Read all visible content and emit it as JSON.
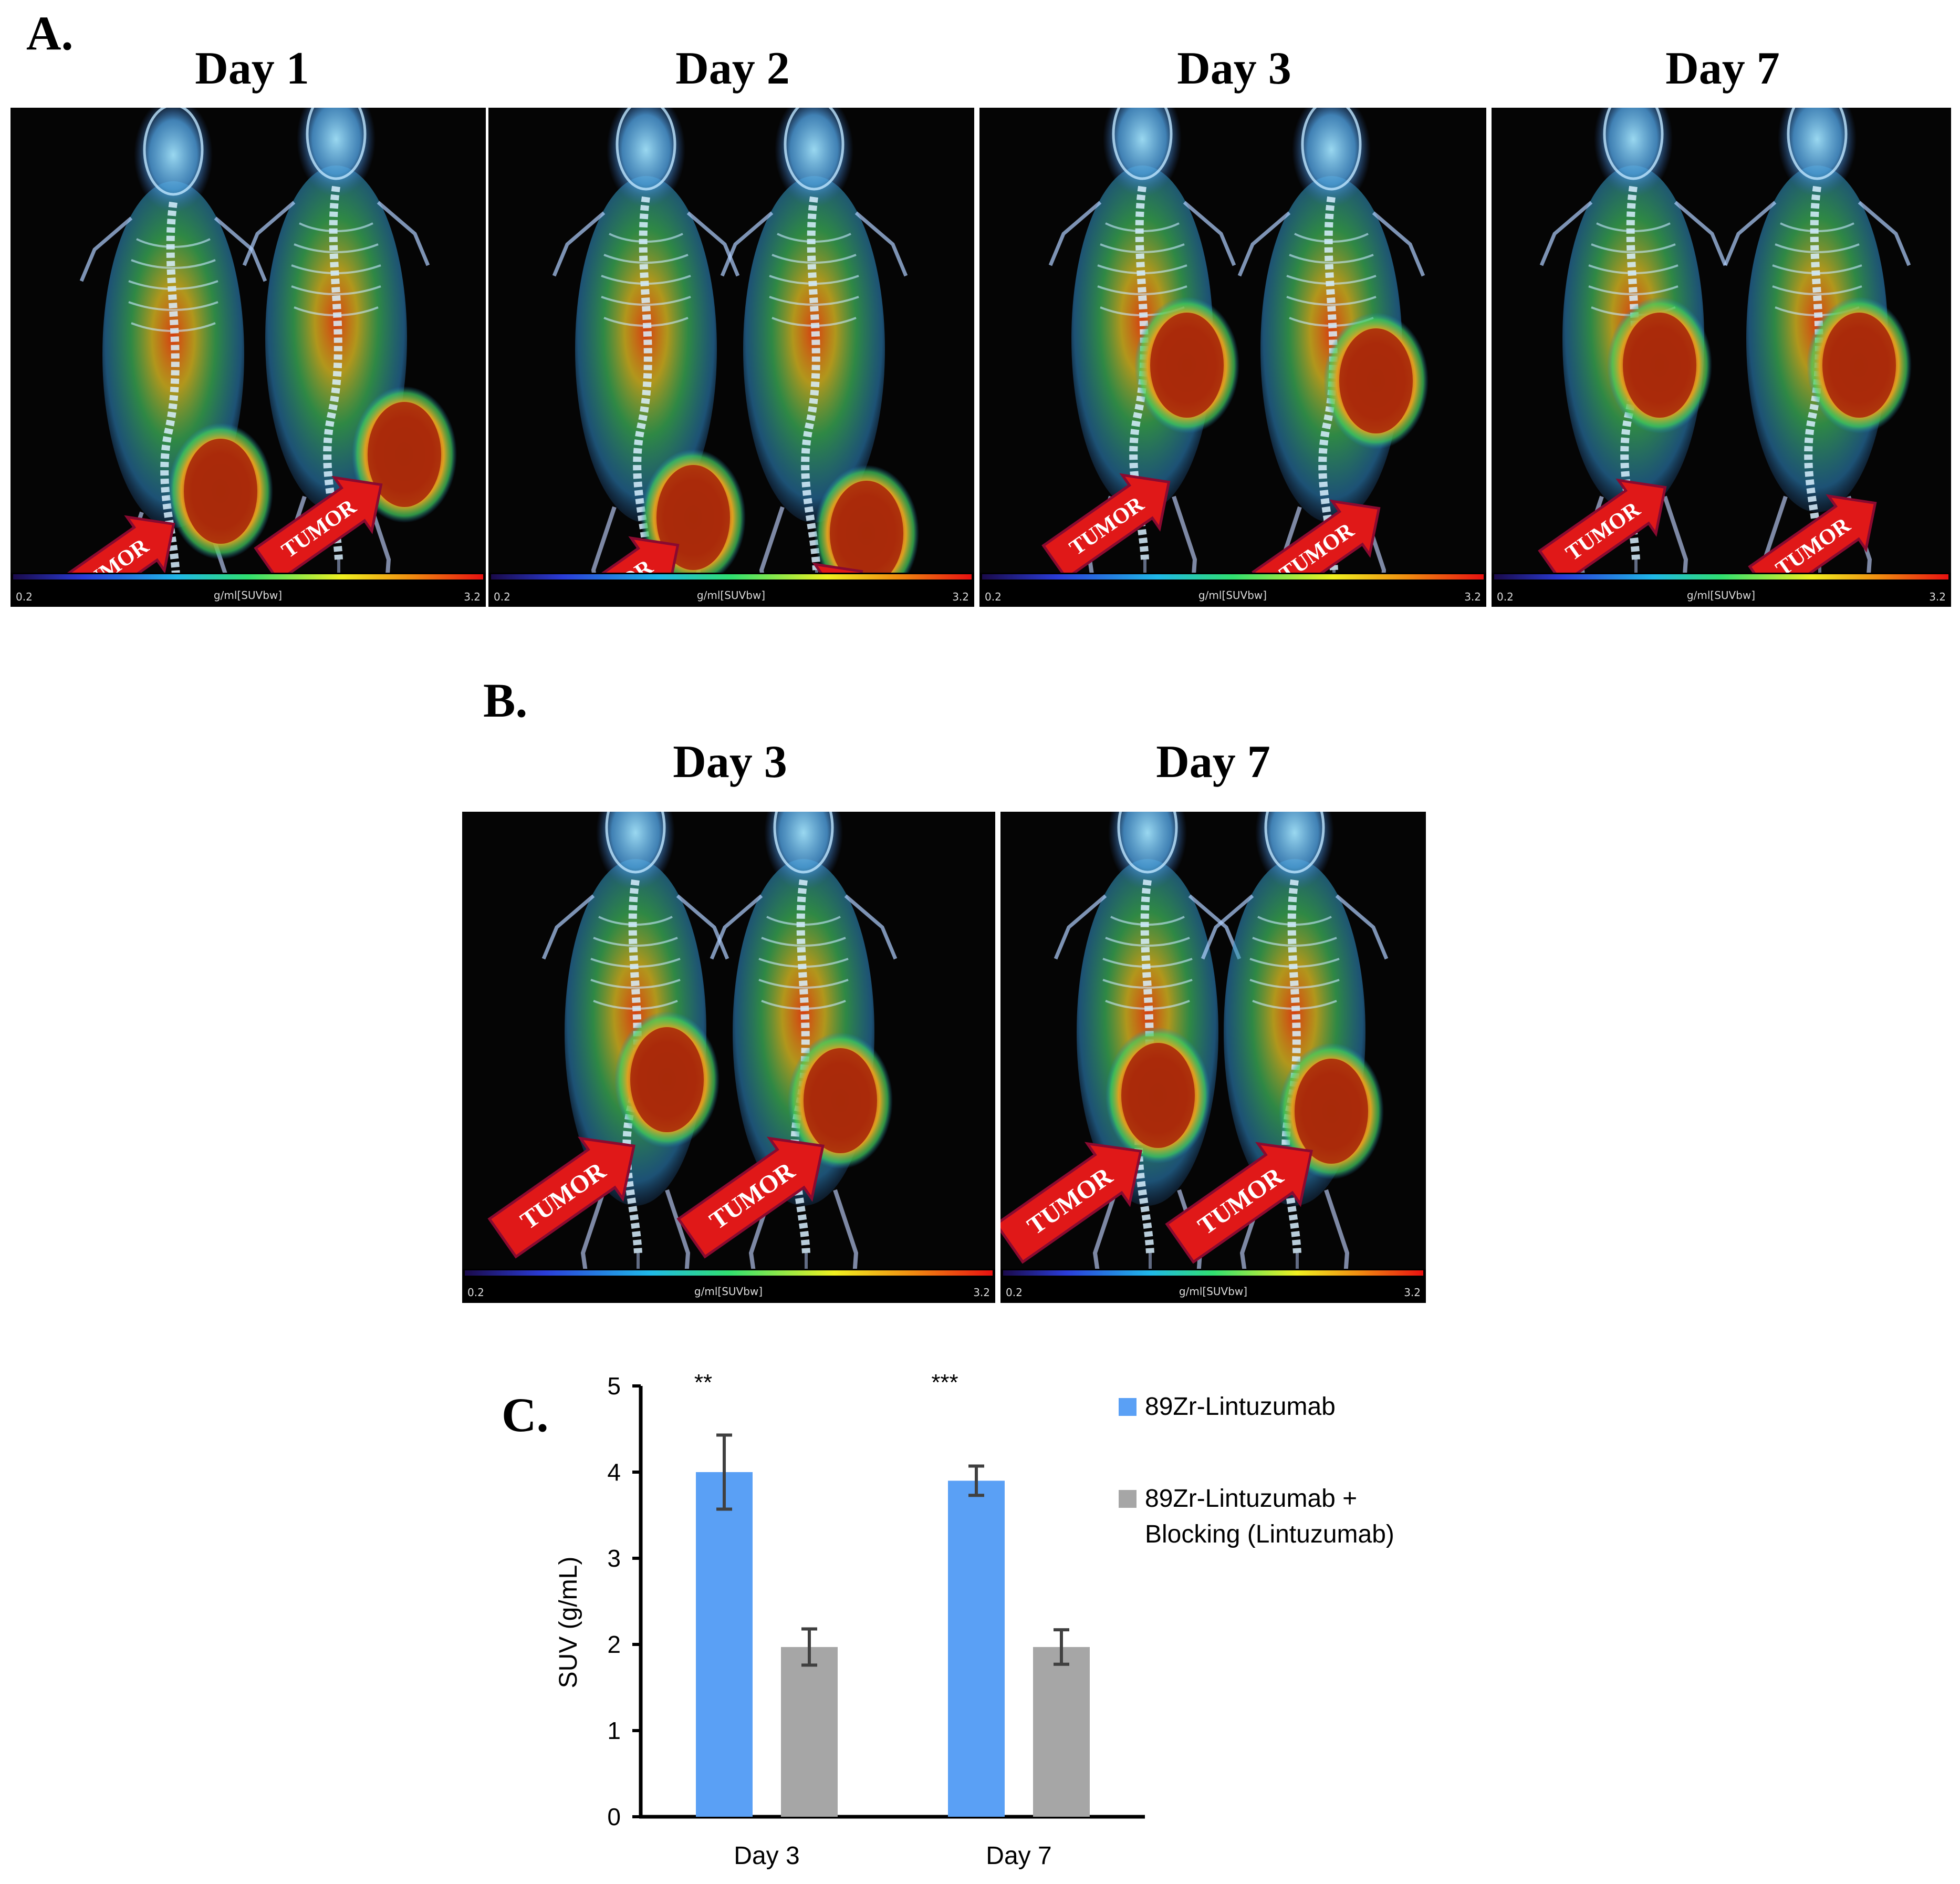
{
  "panelA": {
    "letter": "A.",
    "days": [
      "Day 1",
      "Day 2",
      "Day 3",
      "Day 7"
    ]
  },
  "panelB": {
    "letter": "B.",
    "days": [
      "Day 3",
      "Day 7"
    ]
  },
  "panelC": {
    "letter": "C."
  },
  "image_labels": {
    "tumor": "TUMOR",
    "scale_min": "0.2",
    "scale_max": "3.2",
    "scale_unit": "g/ml[SUVbw]"
  },
  "colors": {
    "blue_series": "#5aa0f5",
    "gray_series": "#a6a6a6"
  },
  "chart_data": {
    "type": "bar",
    "categories": [
      "Day 3",
      "Day 7"
    ],
    "series": [
      {
        "name": "89Zr-Lintuzumab",
        "values": [
          4.0,
          3.9
        ],
        "errors": [
          0.43,
          0.17
        ],
        "color": "#5aa0f5"
      },
      {
        "name": "89Zr-Lintuzumab + Blocking (Lintuzumab)",
        "values": [
          1.97,
          1.97
        ],
        "errors": [
          0.21,
          0.2
        ],
        "color": "#a6a6a6"
      }
    ],
    "significance": [
      "**",
      "***"
    ],
    "ylabel": "SUV (g/mL)",
    "ylim": [
      0,
      5
    ],
    "yticks": [
      0,
      1,
      2,
      3,
      4,
      5
    ],
    "legend_lines": [
      [
        "89Zr-Lintuzumab"
      ],
      [
        "89Zr-Lintuzumab +",
        "Blocking (Lintuzumab)"
      ]
    ],
    "legend_position": "right"
  }
}
